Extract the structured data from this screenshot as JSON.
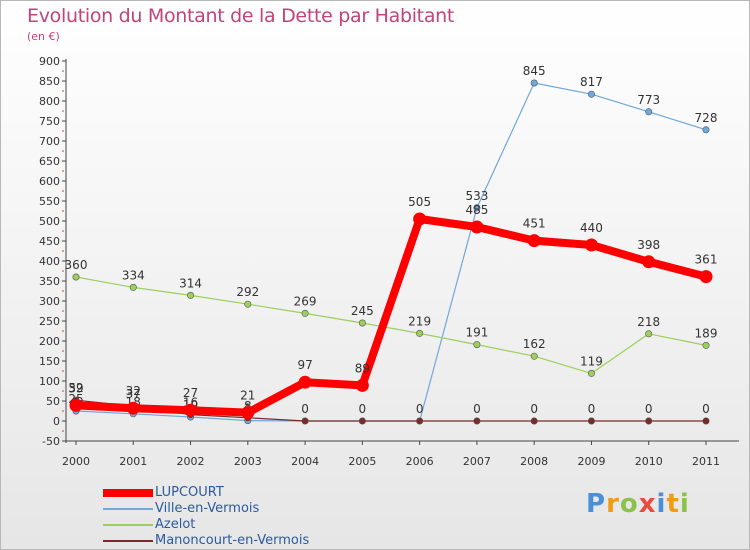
{
  "header": {
    "title": "Evolution du Montant de la Dette par Habitant",
    "unit": "(en €)"
  },
  "logo": {
    "letters": [
      "P",
      "r",
      "o",
      "x",
      "i",
      "t",
      "i"
    ],
    "colors": [
      "#4a90d9",
      "#f39c12",
      "#8bc34a",
      "#e74c3c",
      "#4a90d9",
      "#f39c12",
      "#8bc34a"
    ]
  },
  "chart_data": {
    "type": "line",
    "title": "Evolution du Montant de la Dette par Habitant",
    "ylabel": "(en €)",
    "xlabel": "",
    "categories": [
      "2000",
      "2001",
      "2002",
      "2003",
      "2004",
      "2005",
      "2006",
      "2007",
      "2008",
      "2009",
      "2010",
      "2011"
    ],
    "ylim": [
      -50,
      900
    ],
    "yticks": [
      -50,
      0,
      50,
      100,
      150,
      200,
      250,
      300,
      350,
      400,
      450,
      500,
      550,
      600,
      650,
      700,
      750,
      800,
      850,
      900
    ],
    "grid": false,
    "legend_position": "bottom-left",
    "series": [
      {
        "name": "LUPCOURT",
        "color": "#ff0000",
        "values": [
          39,
          32,
          27,
          21,
          97,
          89,
          505,
          485,
          451,
          440,
          398,
          361
        ],
        "labels": [
          "39",
          "32",
          "27",
          "21",
          "97",
          "89",
          "505",
          "485",
          "451",
          "440",
          "398",
          "361"
        ]
      },
      {
        "name": "Ville-en-Vermois",
        "color": "#6fa8dc",
        "values": [
          25,
          18,
          10,
          1,
          null,
          null,
          null,
          533,
          845,
          817,
          773,
          728
        ],
        "labels": [
          "25",
          "18",
          "10",
          "1",
          "",
          "",
          "",
          "533",
          "845",
          "817",
          "773",
          "728"
        ]
      },
      {
        "name": "Azelot",
        "color": "#9ccf5c",
        "values": [
          360,
          334,
          314,
          292,
          269,
          245,
          219,
          191,
          162,
          119,
          218,
          189
        ],
        "labels": [
          "360",
          "334",
          "314",
          "292",
          "269",
          "245",
          "219",
          "191",
          "162",
          "119",
          "218",
          "189"
        ]
      },
      {
        "name": "Manoncourt-en-Vermois",
        "color": "#7a2a2a",
        "values": [
          52,
          37,
          16,
          8,
          0,
          0,
          0,
          0,
          0,
          0,
          0,
          0
        ],
        "labels": [
          "52",
          "37",
          "16",
          "8",
          "0",
          "0",
          "0",
          "0",
          "0",
          "0",
          "0",
          "0"
        ]
      }
    ]
  }
}
